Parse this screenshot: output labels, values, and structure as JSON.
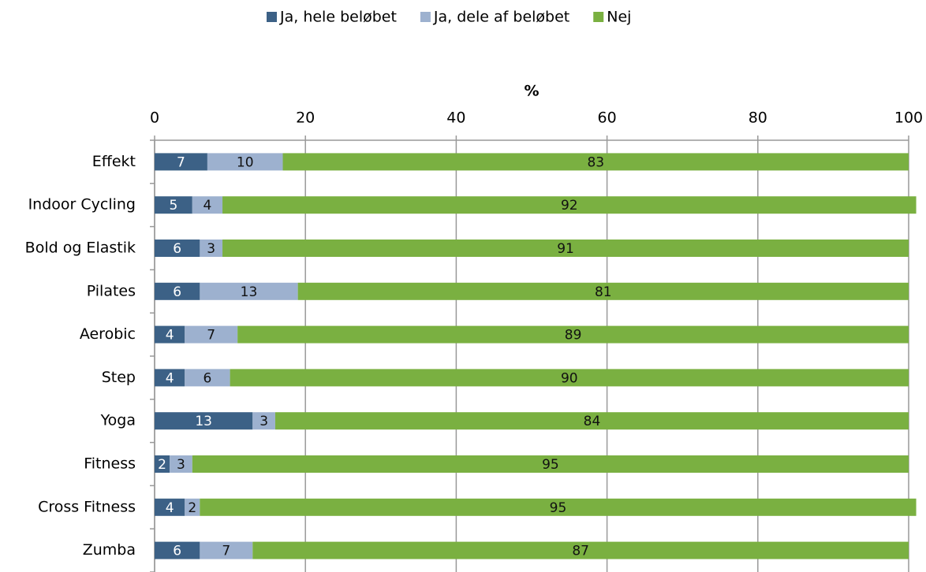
{
  "chart_data": {
    "type": "bar",
    "orientation": "horizontal",
    "stacked": true,
    "x_label": "%",
    "categories": [
      "Effekt",
      "Indoor Cycling",
      "Bold og Elastik",
      "Pilates",
      "Aerobic",
      "Step",
      "Yoga",
      "Fitness",
      "Cross Fitness",
      "Zumba"
    ],
    "series": [
      {
        "name": "Ja, hele beløbet",
        "color": "#3c6186",
        "values": [
          7,
          5,
          6,
          6,
          4,
          4,
          13,
          2,
          4,
          6
        ]
      },
      {
        "name": "Ja, dele af beløbet",
        "color": "#9db1cf",
        "values": [
          10,
          4,
          3,
          13,
          7,
          6,
          3,
          3,
          2,
          7
        ]
      },
      {
        "name": "Nej",
        "color": "#7ab041",
        "values": [
          83,
          92,
          91,
          81,
          89,
          90,
          84,
          95,
          95,
          87
        ]
      }
    ],
    "xlim": [
      0,
      100
    ],
    "xticks": [
      0,
      20,
      40,
      60,
      80,
      100
    ],
    "grid": true,
    "legend": "top"
  }
}
